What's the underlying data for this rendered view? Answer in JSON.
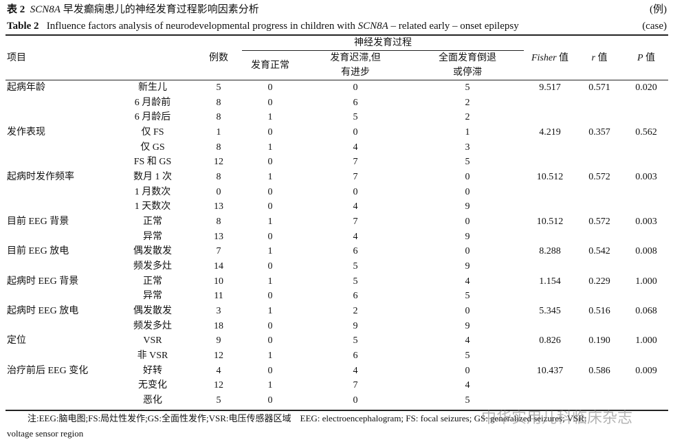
{
  "header": {
    "label_cn": "表 2",
    "gene_cn": "SCN8A",
    "title_cn": "早发癫痫患儿的神经发育过程影响因素分析",
    "unit_cn": "(例)",
    "label_en": "Table 2",
    "title_en_pre": "Influence factors analysis of neurodevelopmental progress in children with",
    "gene_en": "SCN8A",
    "title_en_post": "– related early – onset epilepsy",
    "unit_en": "(case)"
  },
  "table": {
    "columns": {
      "item": "项目",
      "n": "例数",
      "group": "神经发育过程",
      "normal": "发育正常",
      "delayed": [
        "发育迟滞,但",
        "有进步"
      ],
      "regressed": [
        "全面发育倒退",
        "或停滞"
      ],
      "fisher": {
        "sym": "Fisher",
        "word": "值"
      },
      "r": {
        "sym": "r",
        "word": "值"
      },
      "p": {
        "sym": "P",
        "word": "值"
      }
    },
    "groups": [
      {
        "factor": "起病年龄",
        "fisher": "9.517",
        "r": "0.571",
        "p": "0.020",
        "rows": [
          [
            "新生儿",
            "5",
            "0",
            "0",
            "5"
          ],
          [
            "6 月龄前",
            "8",
            "0",
            "6",
            "2"
          ],
          [
            "6 月龄后",
            "8",
            "1",
            "5",
            "2"
          ]
        ]
      },
      {
        "factor": "发作表现",
        "fisher": "4.219",
        "r": "0.357",
        "p": "0.562",
        "rows": [
          [
            "仅 FS",
            "1",
            "0",
            "0",
            "1"
          ],
          [
            "仅 GS",
            "8",
            "1",
            "4",
            "3"
          ],
          [
            "FS 和 GS",
            "12",
            "0",
            "7",
            "5"
          ]
        ]
      },
      {
        "factor": "起病时发作频率",
        "fisher": "10.512",
        "r": "0.572",
        "p": "0.003",
        "rows": [
          [
            "数月 1 次",
            "8",
            "1",
            "7",
            "0"
          ],
          [
            "1 月数次",
            "0",
            "0",
            "0",
            "0"
          ],
          [
            "1 天数次",
            "13",
            "0",
            "4",
            "9"
          ]
        ]
      },
      {
        "factor": "目前 EEG 背景",
        "fisher": "10.512",
        "r": "0.572",
        "p": "0.003",
        "rows": [
          [
            "正常",
            "8",
            "1",
            "7",
            "0"
          ],
          [
            "异常",
            "13",
            "0",
            "4",
            "9"
          ]
        ]
      },
      {
        "factor": "目前 EEG 放电",
        "fisher": "8.288",
        "r": "0.542",
        "p": "0.008",
        "rows": [
          [
            "偶发散发",
            "7",
            "1",
            "6",
            "0"
          ],
          [
            "频发多灶",
            "14",
            "0",
            "5",
            "9"
          ]
        ]
      },
      {
        "factor": "起病时 EEG 背景",
        "fisher": "1.154",
        "r": "0.229",
        "p": "1.000",
        "rows": [
          [
            "正常",
            "10",
            "1",
            "5",
            "4"
          ],
          [
            "异常",
            "11",
            "0",
            "6",
            "5"
          ]
        ]
      },
      {
        "factor": "起病时 EEG 放电",
        "fisher": "5.345",
        "r": "0.516",
        "p": "0.068",
        "rows": [
          [
            "偶发散发",
            "3",
            "1",
            "2",
            "0"
          ],
          [
            "频发多灶",
            "18",
            "0",
            "9",
            "9"
          ]
        ]
      },
      {
        "factor": "定位",
        "fisher": "0.826",
        "r": "0.190",
        "p": "1.000",
        "rows": [
          [
            "VSR",
            "9",
            "0",
            "5",
            "4"
          ],
          [
            "非 VSR",
            "12",
            "1",
            "6",
            "5"
          ]
        ]
      },
      {
        "factor": "治疗前后 EEG 变化",
        "fisher": "10.437",
        "r": "0.586",
        "p": "0.009",
        "rows": [
          [
            "好转",
            "4",
            "0",
            "4",
            "0"
          ],
          [
            "无变化",
            "12",
            "1",
            "7",
            "4"
          ],
          [
            "恶化",
            "5",
            "0",
            "0",
            "5"
          ]
        ]
      }
    ]
  },
  "note": [
    "注:EEG:脑电图;FS:局灶性发作;GS:全面性发作;VSR:电压传感器区域　EEG: electroencephalogram; FS: focal seizures; GS: generalized seizures; VSR:",
    "voltage sensor region"
  ],
  "watermark": "中华实用儿科临床杂志"
}
